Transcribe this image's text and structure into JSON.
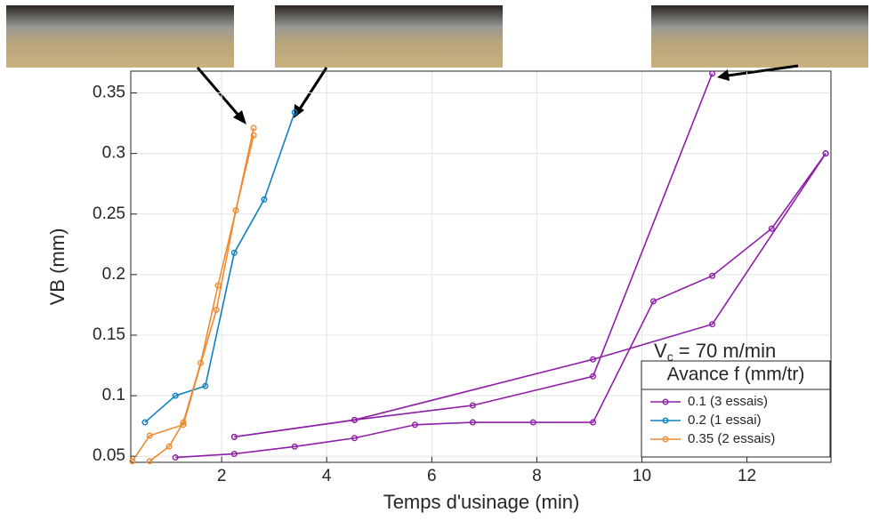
{
  "chart_data": {
    "type": "line",
    "xlabel": "Temps d'usinage (min)",
    "ylabel": "VB (mm)",
    "xlim": [
      0.27,
      13.6
    ],
    "ylim": [
      0.045,
      0.368
    ],
    "xticks": [
      2,
      4,
      6,
      8,
      10,
      12
    ],
    "yticks": [
      0.05,
      0.1,
      0.15,
      0.2,
      0.25,
      0.3,
      0.35
    ],
    "grid": true,
    "legend_position": "lower right",
    "legend_title": "Avance f (mm/tr)",
    "annotation": {
      "main": "V",
      "subscript": "c",
      "rest": " = 70 m/min"
    },
    "series": [
      {
        "name": "0.1 (3 essais)",
        "color": "#8e1ea8",
        "runs": [
          {
            "x": [
              1.12,
              2.24,
              3.39,
              4.53,
              5.68,
              6.78,
              7.93,
              9.07,
              10.22,
              11.34,
              12.47,
              13.5
            ],
            "values": [
              0.049,
              0.052,
              0.058,
              0.065,
              0.076,
              0.078,
              0.078,
              0.078,
              0.178,
              0.199,
              0.238,
              0.3
            ]
          },
          {
            "x": [
              2.24,
              4.53,
              6.78,
              9.07,
              11.34
            ],
            "values": [
              0.066,
              0.08,
              0.092,
              0.116,
              0.366
            ]
          },
          {
            "x": [
              2.24,
              4.53,
              9.07,
              11.34,
              13.5
            ],
            "values": [
              0.066,
              0.08,
              0.13,
              0.159,
              0.3
            ]
          }
        ]
      },
      {
        "name": "0.2 (1 essai)",
        "color": "#0f80c0",
        "runs": [
          {
            "x": [
              0.54,
              1.12,
              1.69,
              2.24,
              2.81,
              3.39
            ],
            "values": [
              0.078,
              0.1,
              0.108,
              0.218,
              0.262,
              0.334
            ]
          }
        ]
      },
      {
        "name": "0.35 (2 essais)",
        "color": "#f08a30",
        "runs": [
          {
            "x": [
              0.3,
              0.63,
              1.27,
              1.9,
              2.27,
              2.61
            ],
            "values": [
              0.046,
              0.067,
              0.076,
              0.171,
              0.253,
              0.321
            ]
          },
          {
            "x": [
              0.63,
              1.0,
              1.27,
              1.6,
              1.93,
              2.61
            ],
            "values": [
              0.046,
              0.058,
              0.078,
              0.127,
              0.191,
              0.315
            ]
          }
        ]
      }
    ]
  }
}
